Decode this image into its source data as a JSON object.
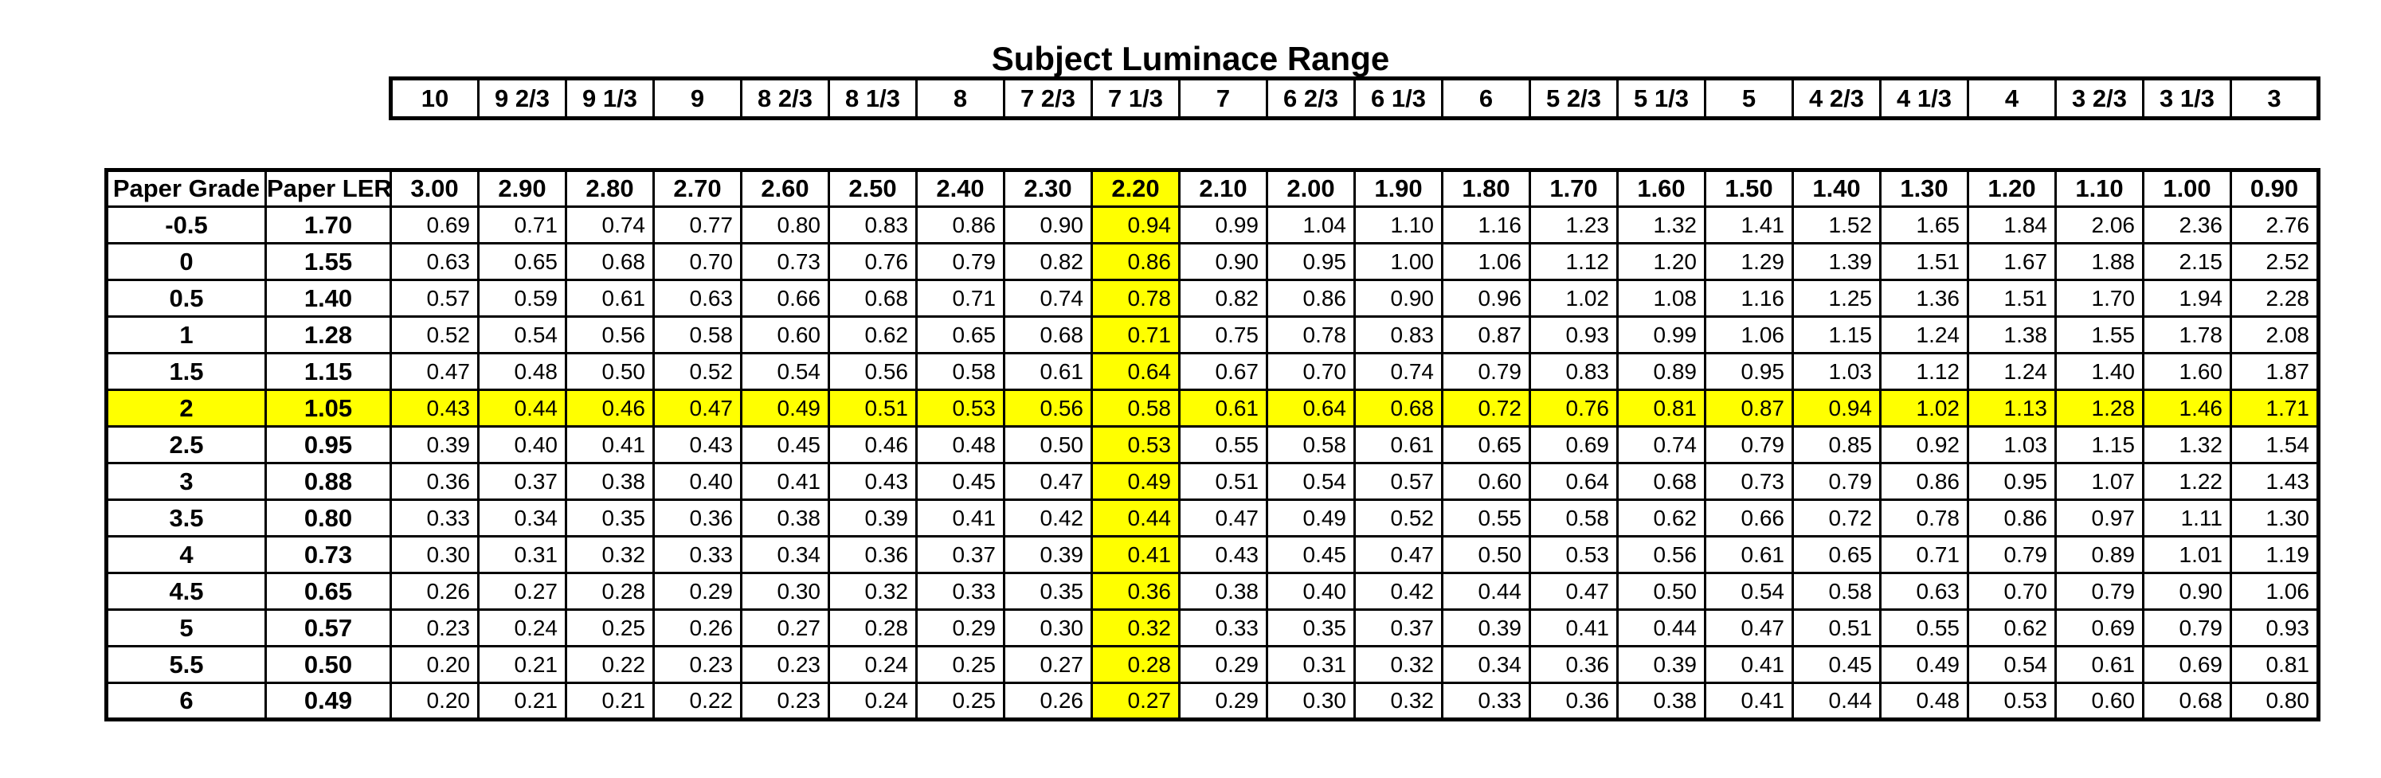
{
  "title": "Subject Luminace Range",
  "colors": {
    "highlight": "#FFFF00",
    "border": "#000000",
    "background": "#FFFFFF",
    "text": "#000000"
  },
  "stops_header": {
    "values": [
      "10",
      "9 2/3",
      "9 1/3",
      "9",
      "8 2/3",
      "8 1/3",
      "8",
      "7 2/3",
      "7 1/3",
      "7",
      "6 2/3",
      "6 1/3",
      "6",
      "5 2/3",
      "5 1/3",
      "5",
      "4 2/3",
      "4 1/3",
      "4",
      "3 2/3",
      "3 1/3",
      "3"
    ]
  },
  "main_table": {
    "corner_headers": [
      "Paper Grade",
      "Paper LER"
    ],
    "density_headers": [
      "3.00",
      "2.90",
      "2.80",
      "2.70",
      "2.60",
      "2.50",
      "2.40",
      "2.30",
      "2.20",
      "2.10",
      "2.00",
      "1.90",
      "1.80",
      "1.70",
      "1.60",
      "1.50",
      "1.40",
      "1.30",
      "1.20",
      "1.10",
      "1.00",
      "0.90"
    ],
    "highlighted_density": "2.20",
    "highlighted_grade": "2",
    "rows": [
      {
        "grade": "-0.5",
        "ler": "1.70",
        "values": [
          "0.69",
          "0.71",
          "0.74",
          "0.77",
          "0.80",
          "0.83",
          "0.86",
          "0.90",
          "0.94",
          "0.99",
          "1.04",
          "1.10",
          "1.16",
          "1.23",
          "1.32",
          "1.41",
          "1.52",
          "1.65",
          "1.84",
          "2.06",
          "2.36",
          "2.76"
        ]
      },
      {
        "grade": "0",
        "ler": "1.55",
        "values": [
          "0.63",
          "0.65",
          "0.68",
          "0.70",
          "0.73",
          "0.76",
          "0.79",
          "0.82",
          "0.86",
          "0.90",
          "0.95",
          "1.00",
          "1.06",
          "1.12",
          "1.20",
          "1.29",
          "1.39",
          "1.51",
          "1.67",
          "1.88",
          "2.15",
          "2.52"
        ]
      },
      {
        "grade": "0.5",
        "ler": "1.40",
        "values": [
          "0.57",
          "0.59",
          "0.61",
          "0.63",
          "0.66",
          "0.68",
          "0.71",
          "0.74",
          "0.78",
          "0.82",
          "0.86",
          "0.90",
          "0.96",
          "1.02",
          "1.08",
          "1.16",
          "1.25",
          "1.36",
          "1.51",
          "1.70",
          "1.94",
          "2.28"
        ]
      },
      {
        "grade": "1",
        "ler": "1.28",
        "values": [
          "0.52",
          "0.54",
          "0.56",
          "0.58",
          "0.60",
          "0.62",
          "0.65",
          "0.68",
          "0.71",
          "0.75",
          "0.78",
          "0.83",
          "0.87",
          "0.93",
          "0.99",
          "1.06",
          "1.15",
          "1.24",
          "1.38",
          "1.55",
          "1.78",
          "2.08"
        ]
      },
      {
        "grade": "1.5",
        "ler": "1.15",
        "values": [
          "0.47",
          "0.48",
          "0.50",
          "0.52",
          "0.54",
          "0.56",
          "0.58",
          "0.61",
          "0.64",
          "0.67",
          "0.70",
          "0.74",
          "0.79",
          "0.83",
          "0.89",
          "0.95",
          "1.03",
          "1.12",
          "1.24",
          "1.40",
          "1.60",
          "1.87"
        ]
      },
      {
        "grade": "2",
        "ler": "1.05",
        "values": [
          "0.43",
          "0.44",
          "0.46",
          "0.47",
          "0.49",
          "0.51",
          "0.53",
          "0.56",
          "0.58",
          "0.61",
          "0.64",
          "0.68",
          "0.72",
          "0.76",
          "0.81",
          "0.87",
          "0.94",
          "1.02",
          "1.13",
          "1.28",
          "1.46",
          "1.71"
        ]
      },
      {
        "grade": "2.5",
        "ler": "0.95",
        "values": [
          "0.39",
          "0.40",
          "0.41",
          "0.43",
          "0.45",
          "0.46",
          "0.48",
          "0.50",
          "0.53",
          "0.55",
          "0.58",
          "0.61",
          "0.65",
          "0.69",
          "0.74",
          "0.79",
          "0.85",
          "0.92",
          "1.03",
          "1.15",
          "1.32",
          "1.54"
        ]
      },
      {
        "grade": "3",
        "ler": "0.88",
        "values": [
          "0.36",
          "0.37",
          "0.38",
          "0.40",
          "0.41",
          "0.43",
          "0.45",
          "0.47",
          "0.49",
          "0.51",
          "0.54",
          "0.57",
          "0.60",
          "0.64",
          "0.68",
          "0.73",
          "0.79",
          "0.86",
          "0.95",
          "1.07",
          "1.22",
          "1.43"
        ]
      },
      {
        "grade": "3.5",
        "ler": "0.80",
        "values": [
          "0.33",
          "0.34",
          "0.35",
          "0.36",
          "0.38",
          "0.39",
          "0.41",
          "0.42",
          "0.44",
          "0.47",
          "0.49",
          "0.52",
          "0.55",
          "0.58",
          "0.62",
          "0.66",
          "0.72",
          "0.78",
          "0.86",
          "0.97",
          "1.11",
          "1.30"
        ]
      },
      {
        "grade": "4",
        "ler": "0.73",
        "values": [
          "0.30",
          "0.31",
          "0.32",
          "0.33",
          "0.34",
          "0.36",
          "0.37",
          "0.39",
          "0.41",
          "0.43",
          "0.45",
          "0.47",
          "0.50",
          "0.53",
          "0.56",
          "0.61",
          "0.65",
          "0.71",
          "0.79",
          "0.89",
          "1.01",
          "1.19"
        ]
      },
      {
        "grade": "4.5",
        "ler": "0.65",
        "values": [
          "0.26",
          "0.27",
          "0.28",
          "0.29",
          "0.30",
          "0.32",
          "0.33",
          "0.35",
          "0.36",
          "0.38",
          "0.40",
          "0.42",
          "0.44",
          "0.47",
          "0.50",
          "0.54",
          "0.58",
          "0.63",
          "0.70",
          "0.79",
          "0.90",
          "1.06"
        ]
      },
      {
        "grade": "5",
        "ler": "0.57",
        "values": [
          "0.23",
          "0.24",
          "0.25",
          "0.26",
          "0.27",
          "0.28",
          "0.29",
          "0.30",
          "0.32",
          "0.33",
          "0.35",
          "0.37",
          "0.39",
          "0.41",
          "0.44",
          "0.47",
          "0.51",
          "0.55",
          "0.62",
          "0.69",
          "0.79",
          "0.93"
        ]
      },
      {
        "grade": "5.5",
        "ler": "0.50",
        "values": [
          "0.20",
          "0.21",
          "0.22",
          "0.23",
          "0.23",
          "0.24",
          "0.25",
          "0.27",
          "0.28",
          "0.29",
          "0.31",
          "0.32",
          "0.34",
          "0.36",
          "0.39",
          "0.41",
          "0.45",
          "0.49",
          "0.54",
          "0.61",
          "0.69",
          "0.81"
        ]
      },
      {
        "grade": "6",
        "ler": "0.49",
        "values": [
          "0.20",
          "0.21",
          "0.21",
          "0.22",
          "0.23",
          "0.24",
          "0.25",
          "0.26",
          "0.27",
          "0.29",
          "0.30",
          "0.32",
          "0.33",
          "0.36",
          "0.38",
          "0.41",
          "0.44",
          "0.48",
          "0.53",
          "0.60",
          "0.68",
          "0.80"
        ]
      }
    ]
  },
  "chart_data": {
    "type": "table",
    "title": "Subject Luminace Range",
    "subject_luminance_range_stops": [
      "10",
      "9 2/3",
      "9 1/3",
      "9",
      "8 2/3",
      "8 1/3",
      "8",
      "7 2/3",
      "7 1/3",
      "7",
      "6 2/3",
      "6 1/3",
      "6",
      "5 2/3",
      "5 1/3",
      "5",
      "4 2/3",
      "4 1/3",
      "4",
      "3 2/3",
      "3 1/3",
      "3"
    ],
    "subject_luminance_range_density": [
      3.0,
      2.9,
      2.8,
      2.7,
      2.6,
      2.5,
      2.4,
      2.3,
      2.2,
      2.1,
      2.0,
      1.9,
      1.8,
      1.7,
      1.6,
      1.5,
      1.4,
      1.3,
      1.2,
      1.1,
      1.0,
      0.9
    ],
    "highlighted_density_column": 2.2,
    "highlighted_paper_grade_row": 2,
    "paper_grades": [
      -0.5,
      0,
      0.5,
      1,
      1.5,
      2,
      2.5,
      3,
      3.5,
      4,
      4.5,
      5,
      5.5,
      6
    ],
    "paper_ler": [
      1.7,
      1.55,
      1.4,
      1.28,
      1.15,
      1.05,
      0.95,
      0.88,
      0.8,
      0.73,
      0.65,
      0.57,
      0.5,
      0.49
    ],
    "values": [
      [
        0.69,
        0.71,
        0.74,
        0.77,
        0.8,
        0.83,
        0.86,
        0.9,
        0.94,
        0.99,
        1.04,
        1.1,
        1.16,
        1.23,
        1.32,
        1.41,
        1.52,
        1.65,
        1.84,
        2.06,
        2.36,
        2.76
      ],
      [
        0.63,
        0.65,
        0.68,
        0.7,
        0.73,
        0.76,
        0.79,
        0.82,
        0.86,
        0.9,
        0.95,
        1.0,
        1.06,
        1.12,
        1.2,
        1.29,
        1.39,
        1.51,
        1.67,
        1.88,
        2.15,
        2.52
      ],
      [
        0.57,
        0.59,
        0.61,
        0.63,
        0.66,
        0.68,
        0.71,
        0.74,
        0.78,
        0.82,
        0.86,
        0.9,
        0.96,
        1.02,
        1.08,
        1.16,
        1.25,
        1.36,
        1.51,
        1.7,
        1.94,
        2.28
      ],
      [
        0.52,
        0.54,
        0.56,
        0.58,
        0.6,
        0.62,
        0.65,
        0.68,
        0.71,
        0.75,
        0.78,
        0.83,
        0.87,
        0.93,
        0.99,
        1.06,
        1.15,
        1.24,
        1.38,
        1.55,
        1.78,
        2.08
      ],
      [
        0.47,
        0.48,
        0.5,
        0.52,
        0.54,
        0.56,
        0.58,
        0.61,
        0.64,
        0.67,
        0.7,
        0.74,
        0.79,
        0.83,
        0.89,
        0.95,
        1.03,
        1.12,
        1.24,
        1.4,
        1.6,
        1.87
      ],
      [
        0.43,
        0.44,
        0.46,
        0.47,
        0.49,
        0.51,
        0.53,
        0.56,
        0.58,
        0.61,
        0.64,
        0.68,
        0.72,
        0.76,
        0.81,
        0.87,
        0.94,
        1.02,
        1.13,
        1.28,
        1.46,
        1.71
      ],
      [
        0.39,
        0.4,
        0.41,
        0.43,
        0.45,
        0.46,
        0.48,
        0.5,
        0.53,
        0.55,
        0.58,
        0.61,
        0.65,
        0.69,
        0.74,
        0.79,
        0.85,
        0.92,
        1.03,
        1.15,
        1.32,
        1.54
      ],
      [
        0.36,
        0.37,
        0.38,
        0.4,
        0.41,
        0.43,
        0.45,
        0.47,
        0.49,
        0.51,
        0.54,
        0.57,
        0.6,
        0.64,
        0.68,
        0.73,
        0.79,
        0.86,
        0.95,
        1.07,
        1.22,
        1.43
      ],
      [
        0.33,
        0.34,
        0.35,
        0.36,
        0.38,
        0.39,
        0.41,
        0.42,
        0.44,
        0.47,
        0.49,
        0.52,
        0.55,
        0.58,
        0.62,
        0.66,
        0.72,
        0.78,
        0.86,
        0.97,
        1.11,
        1.3
      ],
      [
        0.3,
        0.31,
        0.32,
        0.33,
        0.34,
        0.36,
        0.37,
        0.39,
        0.41,
        0.43,
        0.45,
        0.47,
        0.5,
        0.53,
        0.56,
        0.61,
        0.65,
        0.71,
        0.79,
        0.89,
        1.01,
        1.19
      ],
      [
        0.26,
        0.27,
        0.28,
        0.29,
        0.3,
        0.32,
        0.33,
        0.35,
        0.36,
        0.38,
        0.4,
        0.42,
        0.44,
        0.47,
        0.5,
        0.54,
        0.58,
        0.63,
        0.7,
        0.79,
        0.9,
        1.06
      ],
      [
        0.23,
        0.24,
        0.25,
        0.26,
        0.27,
        0.28,
        0.29,
        0.3,
        0.32,
        0.33,
        0.35,
        0.37,
        0.39,
        0.41,
        0.44,
        0.47,
        0.51,
        0.55,
        0.62,
        0.69,
        0.79,
        0.93
      ],
      [
        0.2,
        0.21,
        0.22,
        0.23,
        0.23,
        0.24,
        0.25,
        0.27,
        0.28,
        0.29,
        0.31,
        0.32,
        0.34,
        0.36,
        0.39,
        0.41,
        0.45,
        0.49,
        0.54,
        0.61,
        0.69,
        0.81
      ],
      [
        0.2,
        0.21,
        0.21,
        0.22,
        0.23,
        0.24,
        0.25,
        0.26,
        0.27,
        0.29,
        0.3,
        0.32,
        0.33,
        0.36,
        0.38,
        0.41,
        0.44,
        0.48,
        0.53,
        0.6,
        0.68,
        0.8
      ]
    ]
  }
}
